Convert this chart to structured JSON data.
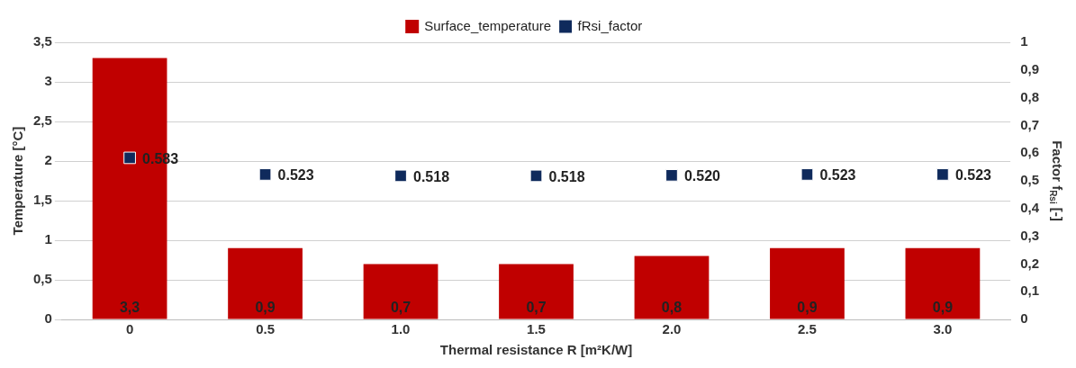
{
  "chart_data": {
    "type": "bar",
    "xlabel": "Thermal resistance R [m²K/W]",
    "ylabel": "Temperature [°C]",
    "y2label": "Factor f$_{Rsi}$ [-]",
    "categories": [
      "0",
      "0.5",
      "1.0",
      "1.5",
      "2.0",
      "2.5",
      "3.0"
    ],
    "series": [
      {
        "name": "Surface_temperature",
        "color": "#c00000",
        "values": [
          3.3,
          0.9,
          0.7,
          0.7,
          0.8,
          0.9,
          0.9
        ],
        "value_labels": [
          "3,3",
          "0,9",
          "0,7",
          "0,7",
          "0,8",
          "0,9",
          "0,9"
        ]
      },
      {
        "name": "fRsi_factor",
        "type": "scatter",
        "axis": "y2",
        "color": "#0f2a5c",
        "values": [
          0.583,
          0.523,
          0.518,
          0.518,
          0.52,
          0.523,
          0.523
        ],
        "value_labels": [
          "0.583",
          "0.523",
          "0.518",
          "0.518",
          "0.520",
          "0.523",
          "0.523"
        ]
      }
    ],
    "ylim": [
      0,
      3.5
    ],
    "yticks": [
      0,
      {
        "value": 0.5,
        "label": "0,5"
      },
      1,
      {
        "value": 1.5,
        "label": "1,5"
      },
      2,
      {
        "value": 2.5,
        "label": "2,5"
      },
      3,
      {
        "value": 3.5,
        "label": "3,5"
      }
    ],
    "y2lim": [
      0,
      1
    ],
    "y2ticks": [
      0,
      {
        "value": 0.1,
        "label": "0,1"
      },
      {
        "value": 0.2,
        "label": "0,2"
      },
      {
        "value": 0.3,
        "label": "0,3"
      },
      {
        "value": 0.4,
        "label": "0,4"
      },
      {
        "value": 0.5,
        "label": "0,5"
      },
      {
        "value": 0.6,
        "label": "0,6"
      },
      {
        "value": 0.7,
        "label": "0,7"
      },
      {
        "value": 0.8,
        "label": "0,8"
      },
      {
        "value": 0.9,
        "label": "0,9"
      },
      1
    ],
    "grid": "y",
    "legend": "top",
    "marker": "square"
  }
}
